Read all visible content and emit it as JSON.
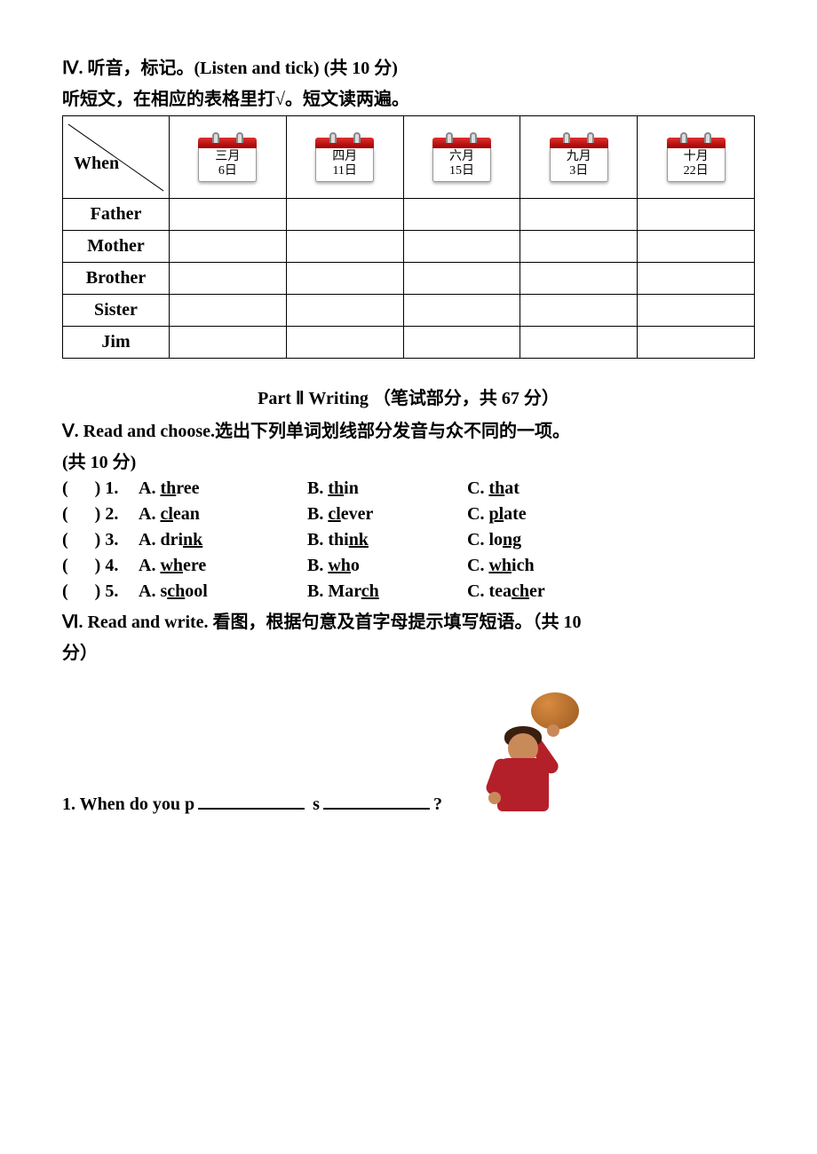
{
  "section4": {
    "heading": "Ⅳ. 听音，标记。(Listen and tick) (共 10 分)",
    "sub": "听短文，在相应的表格里打√。短文读两遍。",
    "when_label": "When",
    "dates": [
      {
        "month": "三月",
        "day": "6日"
      },
      {
        "month": "四月",
        "day": "11日"
      },
      {
        "month": "六月",
        "day": "15日"
      },
      {
        "month": "九月",
        "day": "3日"
      },
      {
        "month": "十月",
        "day": "22日"
      }
    ],
    "rows": [
      "Father",
      "Mother",
      "Brother",
      "Sister",
      "Jim"
    ]
  },
  "part2_title": "Part Ⅱ Writing （笔试部分，共 67 分）",
  "section5": {
    "heading": "Ⅴ. Read and choose.选出下列单词划线部分发音与众不同的一项。",
    "points": "(共 10 分)",
    "items": [
      {
        "n": "1",
        "A_pre": "",
        "A_u": "th",
        "A_post": "ree",
        "B_pre": "",
        "B_u": "th",
        "B_post": "in",
        "C_pre": "",
        "C_u": "th",
        "C_post": "at"
      },
      {
        "n": "2",
        "A_pre": "",
        "A_u": "cl",
        "A_post": "ean",
        "B_pre": "",
        "B_u": "cl",
        "B_post": "ever",
        "C_pre": "",
        "C_u": "pl",
        "C_post": "ate"
      },
      {
        "n": "3",
        "A_pre": "dri",
        "A_u": "nk",
        "A_post": "",
        "B_pre": "thi",
        "B_u": "nk",
        "B_post": "",
        "C_pre": "lo",
        "C_u": "ng",
        "C_post": ""
      },
      {
        "n": "4",
        "A_pre": "",
        "A_u": "wh",
        "A_post": "ere",
        "B_pre": "",
        "B_u": "wh",
        "B_post": "o",
        "C_pre": "",
        "C_u": "wh",
        "C_post": "ich"
      },
      {
        "n": "5",
        "A_pre": "s",
        "A_u": "ch",
        "A_post": "ool",
        "B_pre": "Mar",
        "B_u": "ch",
        "B_post": "",
        "C_pre": "tea",
        "C_u": "ch",
        "C_post": "er"
      }
    ]
  },
  "section6": {
    "heading": "Ⅵ. Read and write. 看图，根据句意及首字母提示填写短语。（共 10",
    "heading2": "分）",
    "q1_prefix": "1. When do you p",
    "q1_mid": " s",
    "q1_suffix": "?"
  }
}
